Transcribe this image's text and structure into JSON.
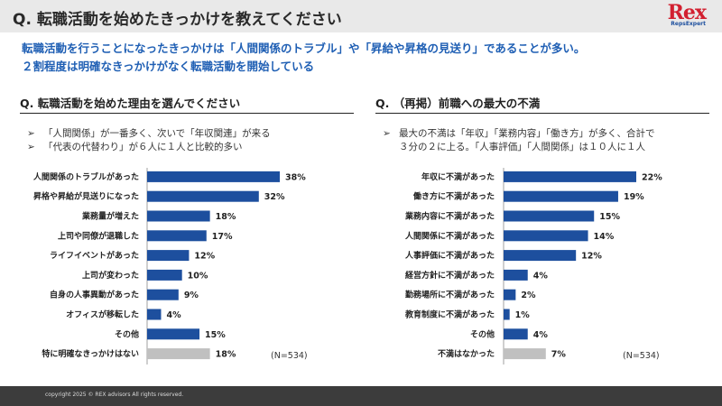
{
  "header": {
    "title": "Q. 転職活動を始めたきっかけを教えてください"
  },
  "logo": {
    "main": "Rex",
    "sub": "RepsExpert"
  },
  "summary": {
    "line1": "転職活動を行うことになったきっかけは「人間関係のトラブル」や「昇給や昇格の見送り」であることが多い。",
    "line2": "２割程度は明確なきっかけがなく転職活動を開始している"
  },
  "left": {
    "title": "Q. 転職活動を始めた理由を選んでください",
    "bullet": "➢",
    "notes": [
      "「人間関係」が一番多く、次いで「年収関連」が来る",
      "「代表の代替わり」が６人に１人と比較的多い"
    ],
    "n_label": "(N=534)"
  },
  "right": {
    "title": "Q. （再掲）前職への最大の不満",
    "bullet": "➢",
    "notes": [
      "最大の不満は「年収」「業務内容」「働き方」が多く、合計で",
      "３分の２に上る。「人事評価」「人間関係」は１０人に１人"
    ],
    "n_label": "(N=534)"
  },
  "chart_data": [
    {
      "type": "bar",
      "orientation": "horizontal",
      "categories": [
        "人間関係のトラブルがあった",
        "昇格や昇給が見送りになった",
        "業務量が増えた",
        "上司や同僚が退職した",
        "ライフイベントがあった",
        "上司が変わった",
        "自身の人事異動があった",
        "オフィスが移転した",
        "その他",
        "特に明確なきっかけはない"
      ],
      "values": [
        38,
        32,
        18,
        17,
        12,
        10,
        9,
        4,
        15,
        18
      ],
      "value_labels": [
        "38%",
        "32%",
        "18%",
        "17%",
        "12%",
        "10%",
        "9%",
        "4%",
        "15%",
        "18%"
      ],
      "colors": [
        "#1d4f9e",
        "#1d4f9e",
        "#1d4f9e",
        "#1d4f9e",
        "#1d4f9e",
        "#1d4f9e",
        "#1d4f9e",
        "#1d4f9e",
        "#1d4f9e",
        "#c0c0c0"
      ],
      "xlim": [
        0,
        38
      ],
      "grid": false,
      "legend": "none"
    },
    {
      "type": "bar",
      "orientation": "horizontal",
      "categories": [
        "年収に不満があった",
        "働き方に不満があった",
        "業務内容に不満があった",
        "人間関係に不満があった",
        "人事評価に不満があった",
        "経営方針に不満があった",
        "勤務場所に不満があった",
        "教育制度に不満があった",
        "その他",
        "不満はなかった"
      ],
      "values": [
        22,
        19,
        15,
        14,
        12,
        4,
        2,
        1,
        4,
        7
      ],
      "value_labels": [
        "22%",
        "19%",
        "15%",
        "14%",
        "12%",
        "4%",
        "2%",
        "1%",
        "4%",
        "7%"
      ],
      "colors": [
        "#1d4f9e",
        "#1d4f9e",
        "#1d4f9e",
        "#1d4f9e",
        "#1d4f9e",
        "#1d4f9e",
        "#1d4f9e",
        "#1d4f9e",
        "#1d4f9e",
        "#c0c0c0"
      ],
      "xlim": [
        0,
        22
      ],
      "grid": false,
      "legend": "none"
    }
  ],
  "footer": {
    "copyright": "copyright 2025 © REX advisors All rights reserved."
  }
}
